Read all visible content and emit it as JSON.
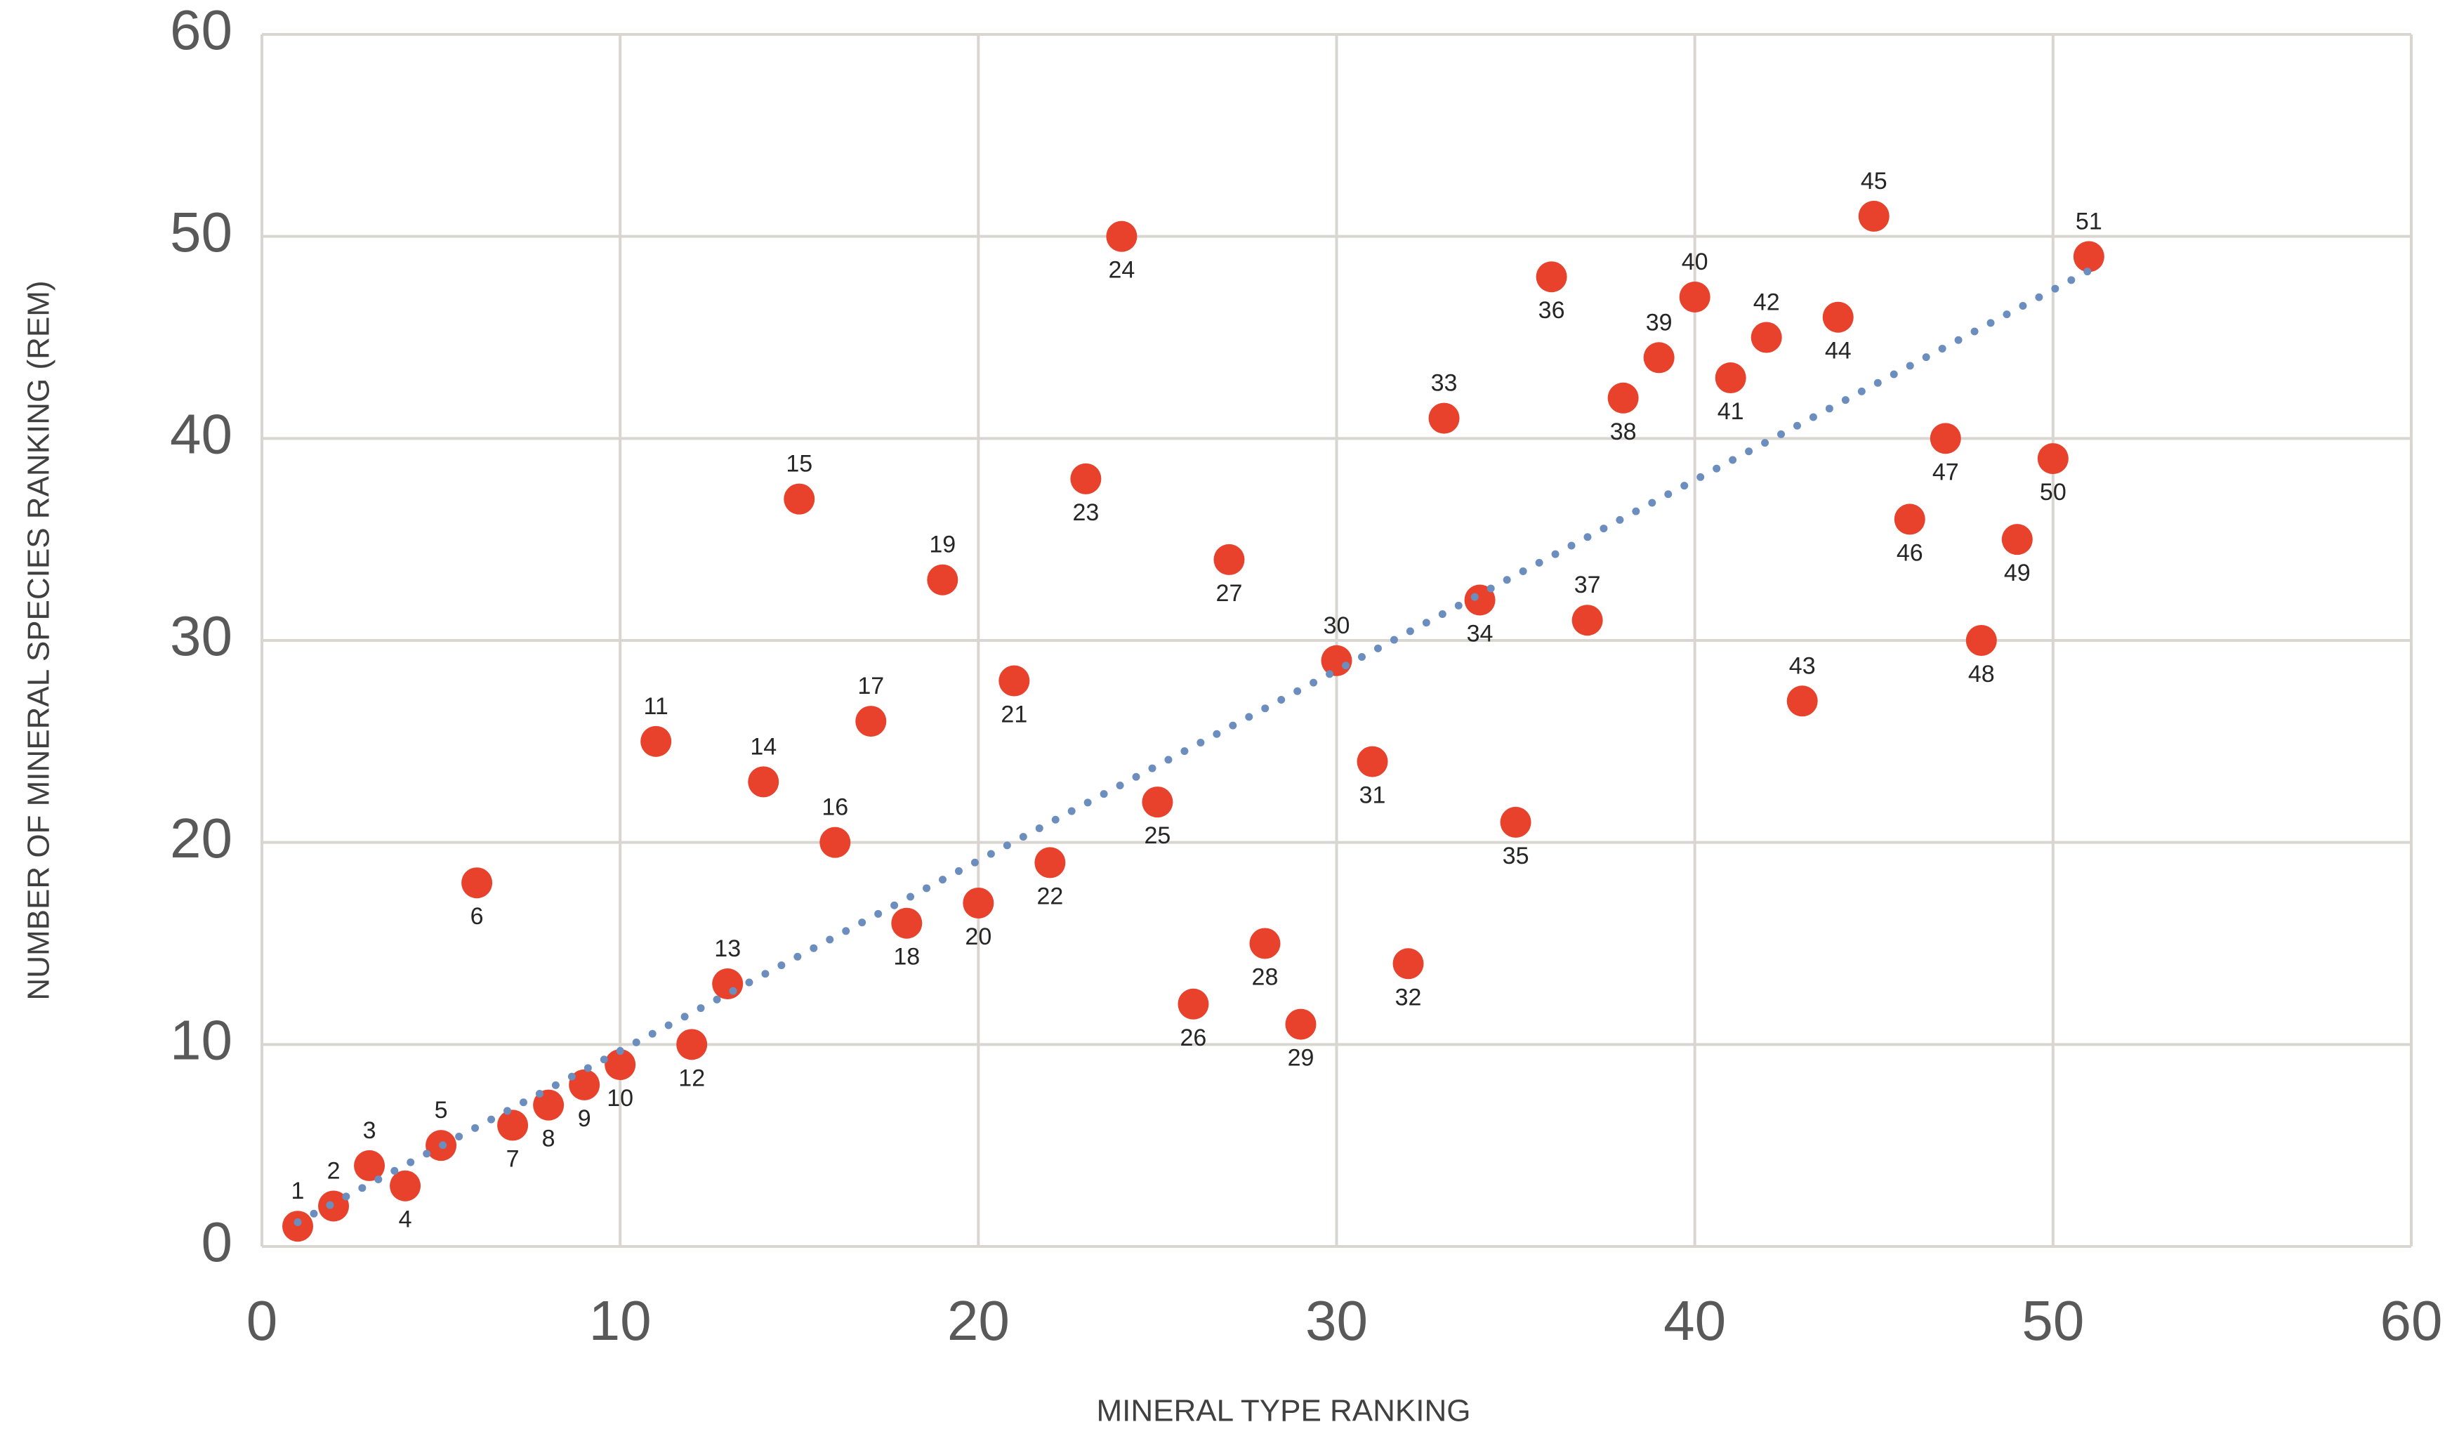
{
  "chart_data": {
    "type": "scatter",
    "x_label": "MINERAL TYPE RANKING",
    "y_label": "NUMBER OF MINERAL SPECIES RANKING (REM)",
    "x": [
      1,
      2,
      3,
      4,
      5,
      6,
      7,
      8,
      9,
      10,
      11,
      12,
      13,
      14,
      15,
      16,
      17,
      18,
      19,
      20,
      21,
      22,
      23,
      24,
      25,
      26,
      27,
      28,
      29,
      30,
      31,
      32,
      33,
      34,
      35,
      36,
      37,
      38,
      39,
      40,
      41,
      42,
      43,
      44,
      45,
      46,
      47,
      48,
      49,
      50,
      51
    ],
    "y": [
      1,
      2,
      4,
      3,
      5,
      18,
      6,
      7,
      8,
      9,
      25,
      10,
      13,
      23,
      37,
      20,
      26,
      16,
      33,
      17,
      28,
      19,
      38,
      50,
      22,
      12,
      34,
      15,
      11,
      29,
      24,
      14,
      41,
      32,
      21,
      48,
      31,
      42,
      44,
      47,
      43,
      45,
      27,
      46,
      51,
      36,
      40,
      30,
      35,
      39,
      49
    ],
    "color": "#e8412c",
    "trendline": {
      "x": [
        1,
        51
      ],
      "y": [
        1.2,
        48.3
      ],
      "color": "#6c8ebf",
      "style": "dotted"
    },
    "xlim": [
      0,
      60
    ],
    "ylim": [
      0,
      60
    ],
    "xticks": [
      0,
      10,
      20,
      30,
      40,
      50,
      60
    ],
    "yticks": [
      0,
      10,
      20,
      30,
      40,
      50,
      60
    ],
    "grid": true
  }
}
